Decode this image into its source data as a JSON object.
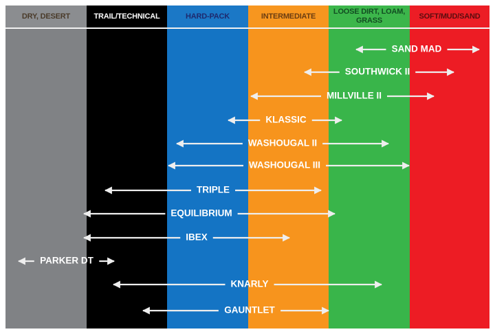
{
  "columns": [
    "DRY, DESERT",
    "TRAIL/TECHNICAL",
    "HARD-PACK",
    "INTERMEDIATE",
    "LOOSE DIRT, LOAM, GRASS",
    "SOFT/MUD/SAND"
  ],
  "items": [
    "SAND MAD",
    "SOUTHWICK II",
    "MILLVILLE II",
    "KLASSIC",
    "WASHOUGAL II",
    "WASHOUGAL III",
    "TRIPLE",
    "EQUILIBRIUM",
    "IBEX",
    "PARKER DT",
    "KNARLY",
    "GAUNTLET"
  ]
}
